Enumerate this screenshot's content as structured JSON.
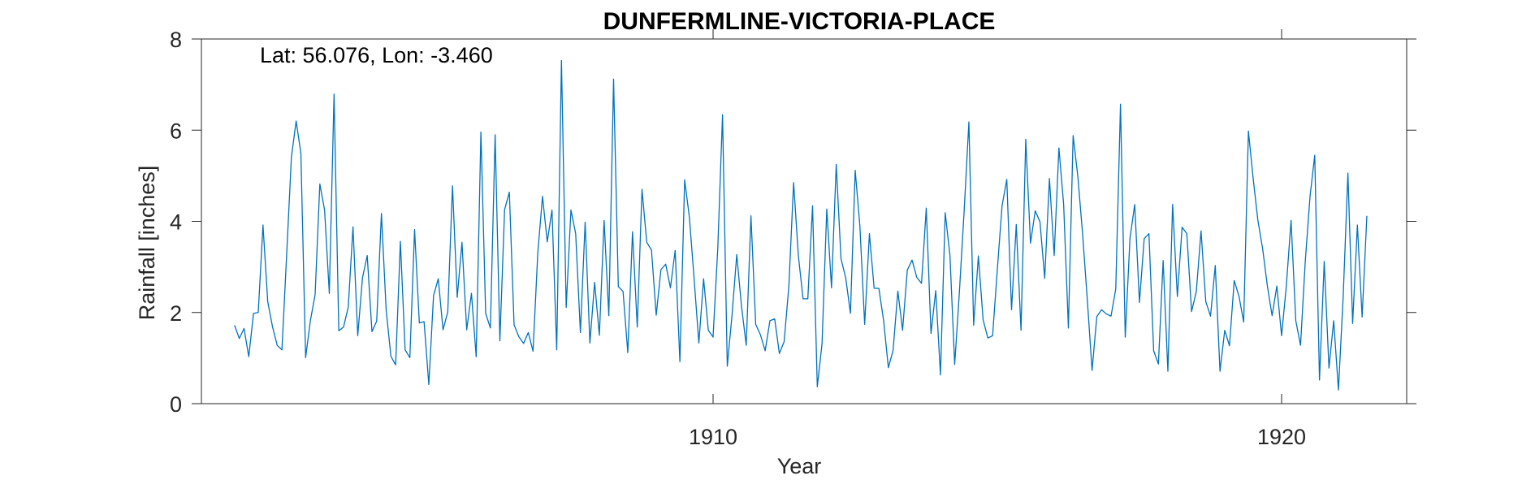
{
  "chart_data": {
    "type": "line",
    "title": "DUNFERMLINE-VICTORIA-PLACE",
    "xlabel": "Year",
    "ylabel": "Rainfall [inches]",
    "annotation": "Lat: 56.076, Lon: -3.460",
    "xlim": [
      1901.0,
      1922.2
    ],
    "ylim": [
      0,
      8
    ],
    "xticks": [
      1910,
      1920
    ],
    "yticks": [
      0,
      2,
      4,
      6,
      8
    ],
    "grid": false,
    "series_color": "#0072BD",
    "series": [
      {
        "x_start": 1901.583,
        "x_step": 0.0833333,
        "values": [
          1.72,
          1.43,
          1.65,
          1.03,
          1.98,
          2.0,
          3.92,
          2.24,
          1.69,
          1.28,
          1.18,
          3.28,
          5.41,
          6.2,
          5.49,
          1.01,
          1.82,
          2.39,
          4.82,
          4.25,
          2.42,
          6.79,
          1.6,
          1.68,
          2.12,
          3.88,
          1.49,
          2.76,
          3.25,
          1.58,
          1.81,
          4.17,
          2.05,
          1.04,
          0.85,
          3.56,
          1.18,
          1.01,
          3.82,
          1.77,
          1.8,
          0.42,
          2.37,
          2.74,
          1.62,
          2.01,
          4.78,
          2.33,
          3.54,
          1.62,
          2.42,
          1.03,
          5.96,
          1.98,
          1.66,
          5.9,
          1.38,
          4.26,
          4.64,
          1.73,
          1.47,
          1.32,
          1.56,
          1.15,
          3.3,
          4.55,
          3.55,
          4.25,
          1.18,
          7.53,
          2.11,
          4.25,
          3.73,
          1.56,
          3.98,
          1.33,
          2.66,
          1.5,
          4.02,
          1.93,
          7.12,
          2.57,
          2.46,
          1.12,
          3.77,
          1.68,
          4.7,
          3.54,
          3.37,
          1.94,
          2.94,
          3.06,
          2.54,
          3.36,
          0.92,
          4.91,
          4.09,
          2.74,
          1.33,
          2.74,
          1.61,
          1.46,
          3.42,
          6.34,
          0.82,
          1.94,
          3.27,
          2.14,
          1.28,
          4.12,
          1.74,
          1.51,
          1.16,
          1.82,
          1.86,
          1.1,
          1.36,
          2.58,
          4.85,
          3.25,
          2.3,
          2.3,
          4.34,
          0.37,
          1.31,
          4.27,
          2.54,
          5.25,
          3.18,
          2.76,
          1.98,
          5.12,
          3.88,
          1.74,
          3.73,
          2.53,
          2.53,
          1.82,
          0.79,
          1.17,
          2.47,
          1.61,
          2.93,
          3.15,
          2.77,
          2.64,
          4.29,
          1.54,
          2.48,
          0.63,
          4.19,
          3.25,
          0.86,
          2.46,
          4.23,
          6.18,
          1.72,
          3.24,
          1.84,
          1.44,
          1.49,
          2.94,
          4.34,
          4.92,
          2.06,
          3.93,
          1.61,
          5.8,
          3.52,
          4.23,
          3.99,
          2.75,
          4.94,
          3.25,
          5.61,
          4.37,
          1.66,
          5.88,
          4.98,
          3.72,
          2.27,
          0.73,
          1.91,
          2.06,
          1.97,
          1.92,
          2.52,
          6.57,
          1.46,
          3.63,
          4.37,
          2.22,
          3.62,
          3.73,
          1.16,
          0.87,
          3.14,
          0.71,
          4.37,
          2.35,
          3.87,
          3.73,
          2.02,
          2.46,
          3.79,
          2.24,
          1.92,
          3.03,
          0.71,
          1.61,
          1.27,
          2.7,
          2.36,
          1.79,
          5.98,
          4.94,
          4.02,
          3.4,
          2.58,
          1.93,
          2.58,
          1.49,
          2.58,
          4.02,
          1.82,
          1.28,
          3.12,
          4.54,
          5.45,
          0.52,
          3.12,
          0.78,
          1.82,
          0.3,
          2.34,
          5.06,
          1.76,
          3.92,
          1.9,
          4.12
        ]
      }
    ]
  }
}
